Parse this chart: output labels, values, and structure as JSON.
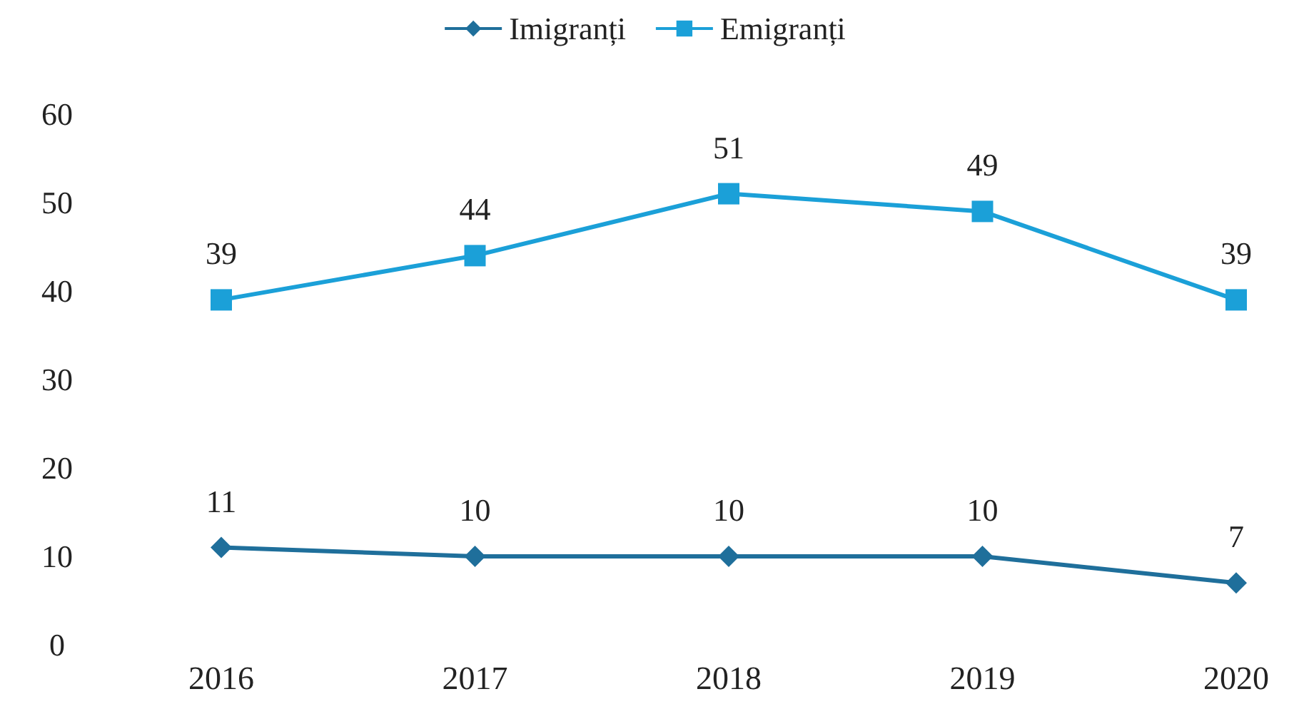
{
  "chart_data": {
    "type": "line",
    "categories": [
      "2016",
      "2017",
      "2018",
      "2019",
      "2020"
    ],
    "series": [
      {
        "name": "Imigranți",
        "color": "#1f6f9b",
        "values": [
          11,
          10,
          10,
          10,
          7
        ],
        "marker": "diamond"
      },
      {
        "name": "Emigranți",
        "color": "#1ba0d8",
        "values": [
          39,
          44,
          51,
          49,
          39
        ],
        "marker": "square"
      }
    ],
    "ylim": [
      0,
      60
    ],
    "yticks": [
      0,
      10,
      20,
      30,
      40,
      50,
      60
    ],
    "grid": false,
    "legend": "top",
    "data_labels": true,
    "line_style": "solid"
  }
}
